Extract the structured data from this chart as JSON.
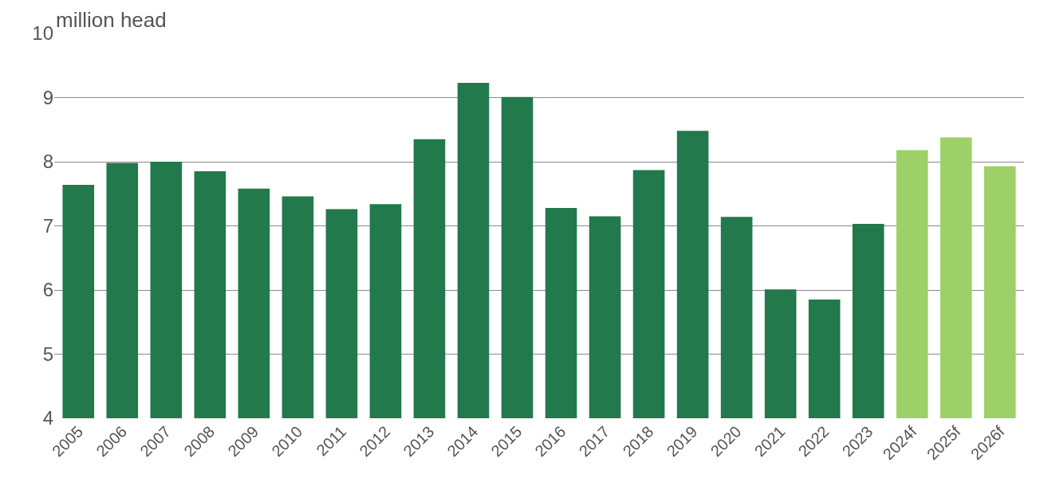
{
  "chart_data": {
    "type": "bar",
    "ylabel": "million head",
    "categories": [
      "2005",
      "2006",
      "2007",
      "2008",
      "2009",
      "2010",
      "2011",
      "2012",
      "2013",
      "2014",
      "2015",
      "2016",
      "2017",
      "2018",
      "2019",
      "2020",
      "2021",
      "2022",
      "2023",
      "2024f",
      "2025f",
      "2026f"
    ],
    "values": [
      7.64,
      7.98,
      8.0,
      7.85,
      7.58,
      7.46,
      7.26,
      7.34,
      8.35,
      9.23,
      9.01,
      7.28,
      7.15,
      7.87,
      8.48,
      7.14,
      6.01,
      5.85,
      7.03,
      8.18,
      8.38,
      7.93
    ],
    "colors": [
      "#21794c",
      "#21794c",
      "#21794c",
      "#21794c",
      "#21794c",
      "#21794c",
      "#21794c",
      "#21794c",
      "#21794c",
      "#21794c",
      "#21794c",
      "#21794c",
      "#21794c",
      "#21794c",
      "#21794c",
      "#21794c",
      "#21794c",
      "#21794c",
      "#21794c",
      "#9dd066",
      "#9dd066",
      "#9dd066"
    ],
    "ylim": [
      4,
      10
    ],
    "yticks": [
      4,
      5,
      6,
      7,
      8,
      9,
      10
    ],
    "grid": "y"
  }
}
